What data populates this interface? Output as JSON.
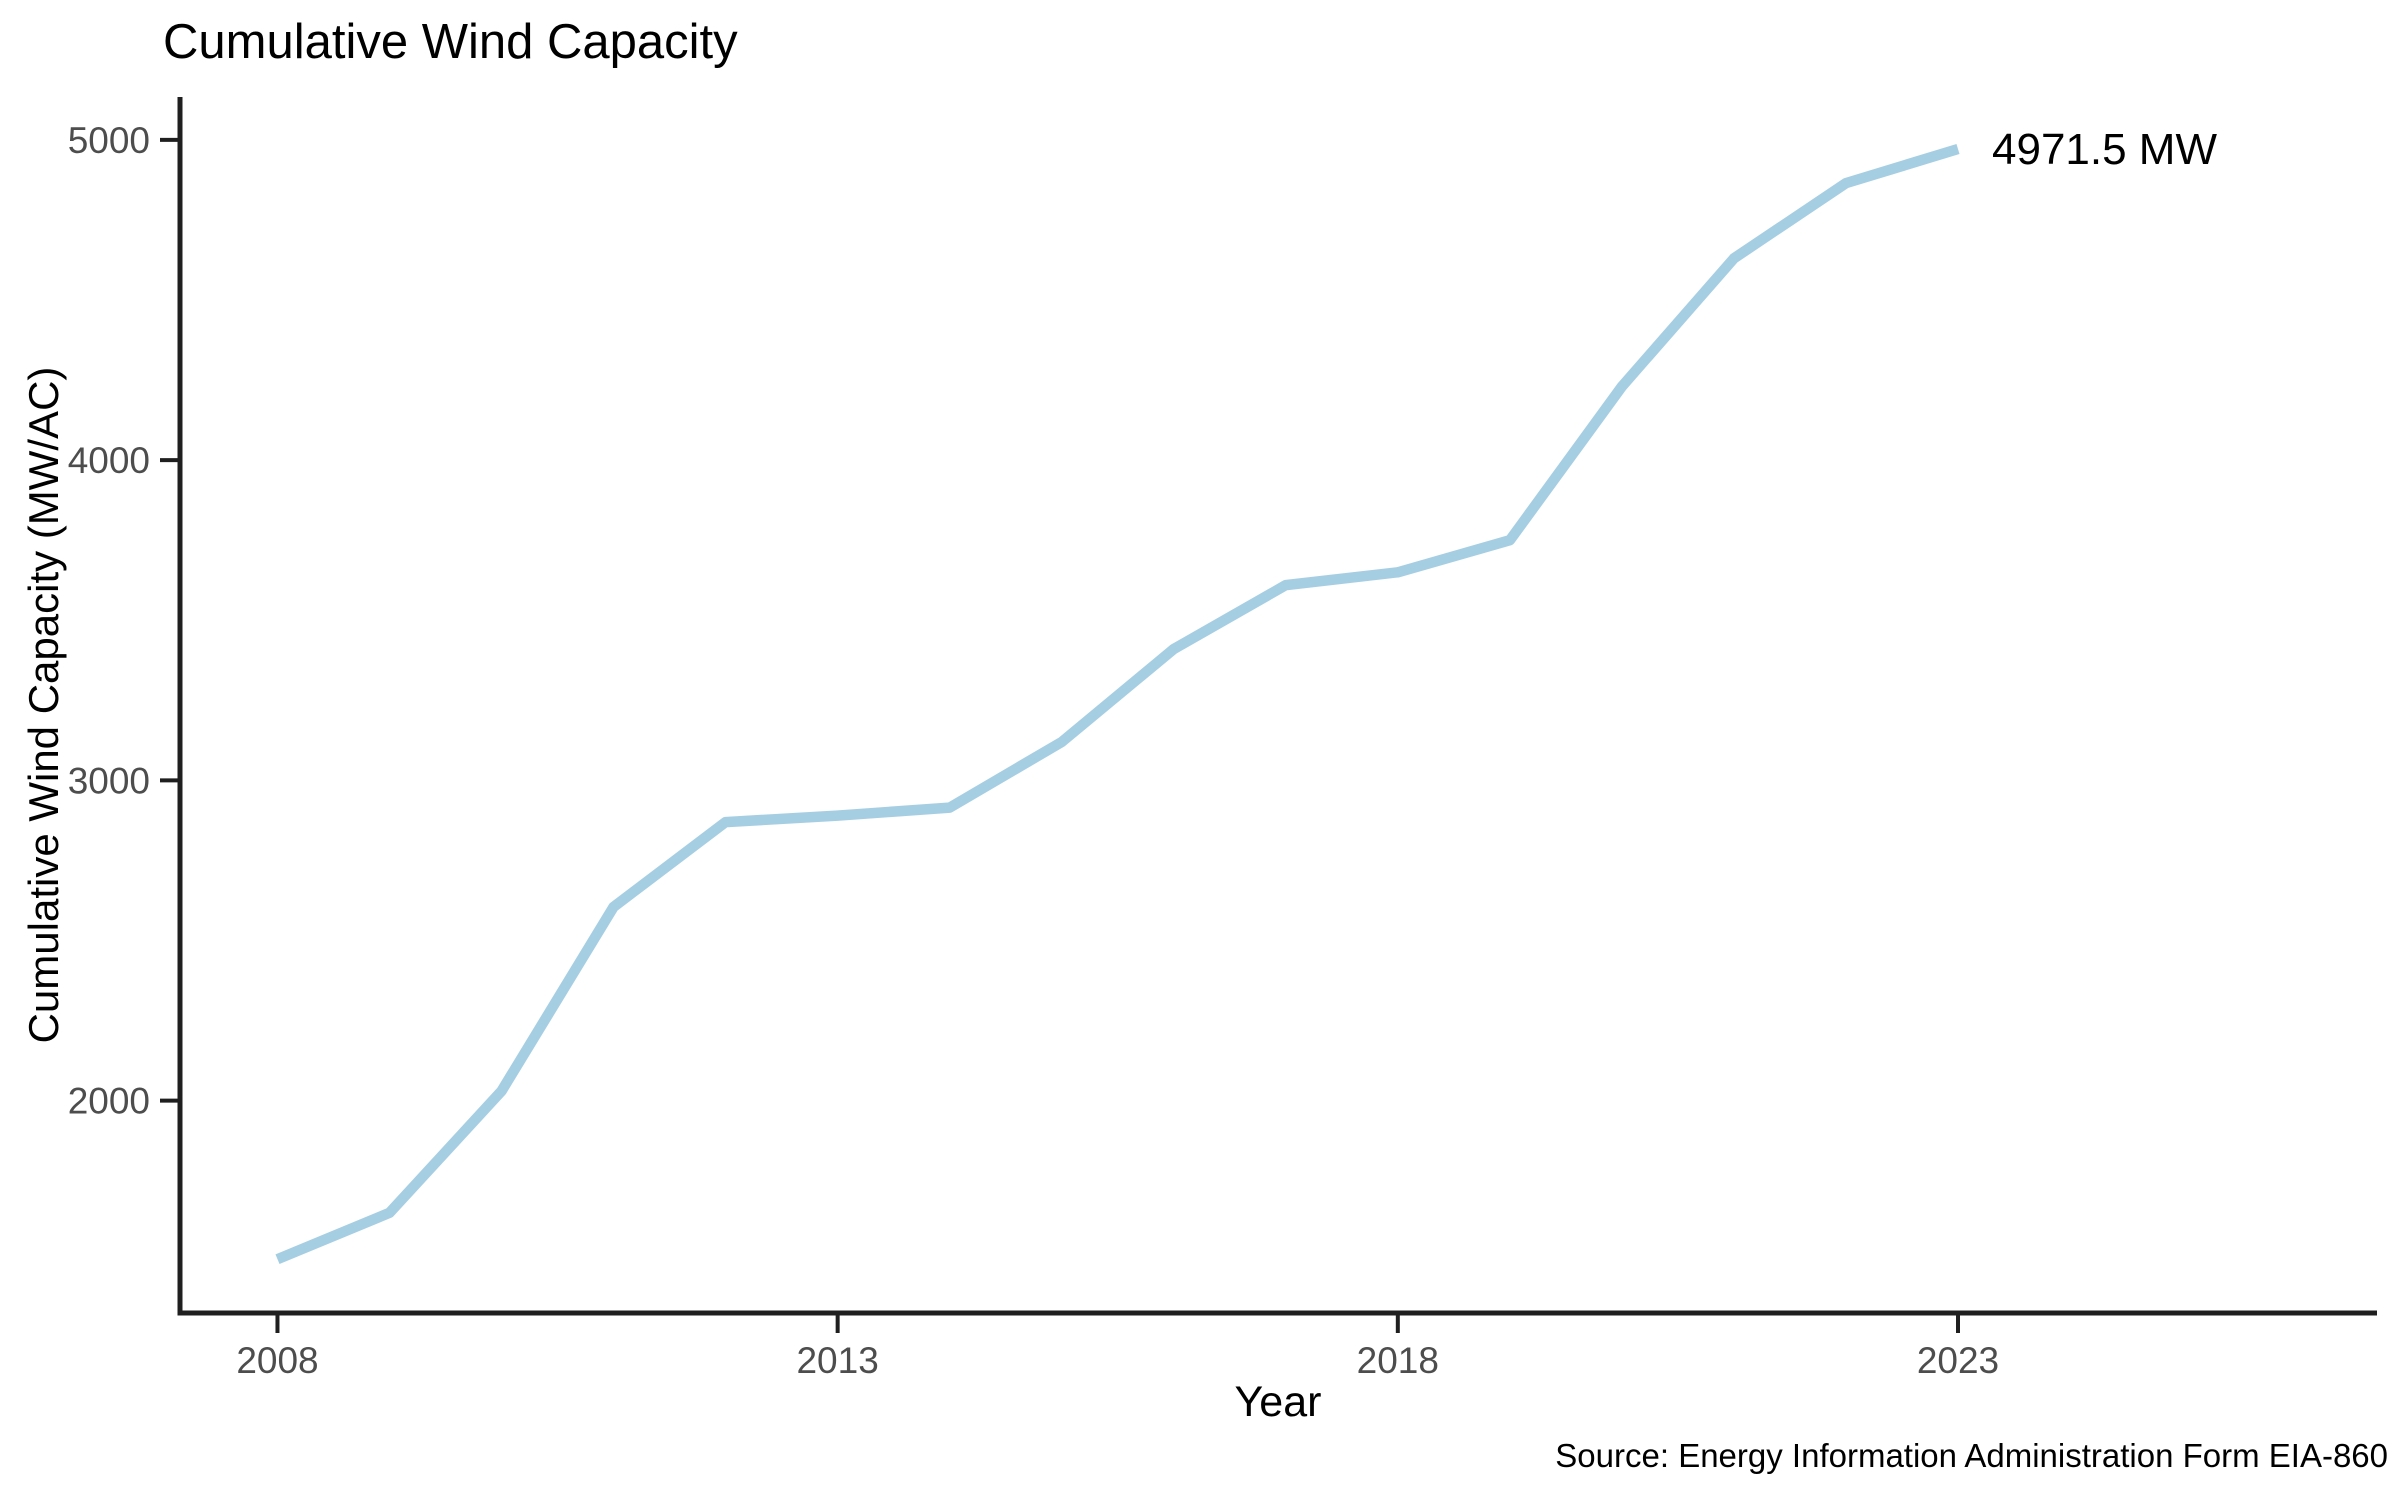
{
  "chart_data": {
    "type": "line",
    "title": "Cumulative Wind Capacity",
    "xlabel": "Year",
    "ylabel": "Cumulative Wind Capacity (MW/AC)",
    "x": [
      2008,
      2009,
      2010,
      2011,
      2012,
      2013,
      2014,
      2015,
      2016,
      2017,
      2018,
      2019,
      2020,
      2021,
      2022,
      2023
    ],
    "series": [
      {
        "name": "Cumulative Wind Capacity",
        "values": [
          1505,
          1650,
          2030,
          2605,
          2870,
          2890,
          2915,
          3120,
          3410,
          3610,
          3650,
          3750,
          4230,
          4630,
          4865,
          4971.5
        ]
      }
    ],
    "x_ticks": [
      "2008",
      "2013",
      "2018",
      "2023"
    ],
    "x_tick_values": [
      2008,
      2013,
      2018,
      2023
    ],
    "y_ticks": [
      "2000",
      "3000",
      "4000",
      "5000"
    ],
    "y_tick_values": [
      2000,
      3000,
      4000,
      5000
    ],
    "xlim": [
      2007.13,
      2026.74
    ],
    "ylim": [
      1337,
      5134
    ],
    "grid": false,
    "legend_position": "none",
    "annotation": {
      "text": "4971.5 MW",
      "x": 2023,
      "y": 4971.5
    },
    "source": "Source: Energy Information Administration Form EIA-860",
    "colors": {
      "line": "#a6cee3",
      "axis": "#1f1f1f",
      "tick_labels": "#4d4d4d",
      "text": "#000000",
      "background": "#ffffff"
    }
  }
}
